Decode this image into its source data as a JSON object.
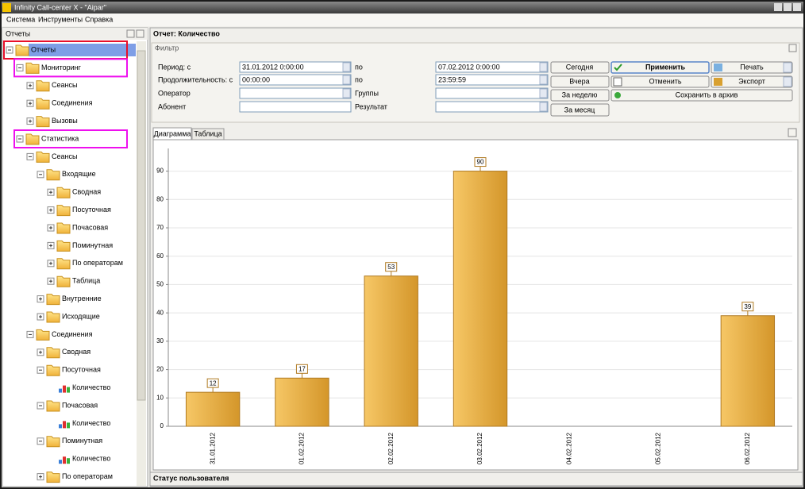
{
  "window": {
    "title": "Infinity Call-center X - \"Aipar\"",
    "menu": [
      "Система",
      "Инструменты",
      "Справка"
    ]
  },
  "left_panel": {
    "title": "Отчеты",
    "tree": {
      "label": "Отчеты",
      "selected": true,
      "outline": "#e8102a",
      "children": [
        {
          "label": "Мониторинг",
          "outline": "#ee10ee",
          "children": [
            {
              "label": "Сеансы"
            },
            {
              "label": "Соединения"
            },
            {
              "label": "Вызовы"
            }
          ]
        },
        {
          "label": "Статистика",
          "outline": "#ee10ee",
          "children": [
            {
              "label": "Сеансы",
              "children": [
                {
                  "label": "Входящие",
                  "children": [
                    {
                      "label": "Сводная"
                    },
                    {
                      "label": "Посуточная"
                    },
                    {
                      "label": "Почасовая"
                    },
                    {
                      "label": "Поминутная"
                    },
                    {
                      "label": "По операторам"
                    },
                    {
                      "label": "Таблица"
                    }
                  ]
                },
                {
                  "label": "Внутренние"
                },
                {
                  "label": "Исходящие"
                }
              ]
            },
            {
              "label": "Соединения",
              "children": [
                {
                  "label": "Сводная"
                },
                {
                  "label": "Посуточная",
                  "children": [
                    {
                      "label": "Количество",
                      "icon": "chart"
                    }
                  ]
                },
                {
                  "label": "Почасовая",
                  "children": [
                    {
                      "label": "Количество",
                      "icon": "chart"
                    }
                  ]
                },
                {
                  "label": "Поминутная",
                  "children": [
                    {
                      "label": "Количество",
                      "icon": "chart"
                    }
                  ]
                },
                {
                  "label": "По операторам"
                }
              ]
            }
          ]
        }
      ]
    }
  },
  "report": {
    "title": "Отчет: Количество",
    "filter": {
      "title": "Фильтр",
      "period_label": "Период: с",
      "period_from": "31.01.2012 0:00:00",
      "period_to_label": "по",
      "period_to": "07.02.2012 0:00:00",
      "duration_label": "Продолжительность: с",
      "duration_from": "00:00:00",
      "duration_to_label": "по",
      "duration_to": "23:59:59",
      "operator_label": "Оператор",
      "groups_label": "Группы",
      "subscriber_label": "Абонент",
      "result_label": "Результат"
    },
    "buttons": {
      "today": "Сегодня",
      "yesterday": "Вчера",
      "week": "За неделю",
      "month": "За месяц",
      "apply": "Применить",
      "cancel": "Отменить",
      "archive": "Сохранить в архив",
      "print": "Печать",
      "export": "Экспорт"
    },
    "tabs": [
      "Диаграмма",
      "Таблица"
    ]
  },
  "chart_data": {
    "type": "bar",
    "categories": [
      "31.01.2012",
      "01.02.2012",
      "02.02.2012",
      "03.02.2012",
      "04.02.2012",
      "05.02.2012",
      "06.02.2012"
    ],
    "values": [
      12,
      17,
      53,
      90,
      0,
      0,
      39
    ],
    "color": "#e3a63c",
    "ylim": [
      0,
      98
    ],
    "yticks": [
      0,
      10,
      20,
      30,
      40,
      50,
      60,
      70,
      80,
      90
    ],
    "grid": true
  },
  "status": {
    "title": "Статус пользователя"
  }
}
